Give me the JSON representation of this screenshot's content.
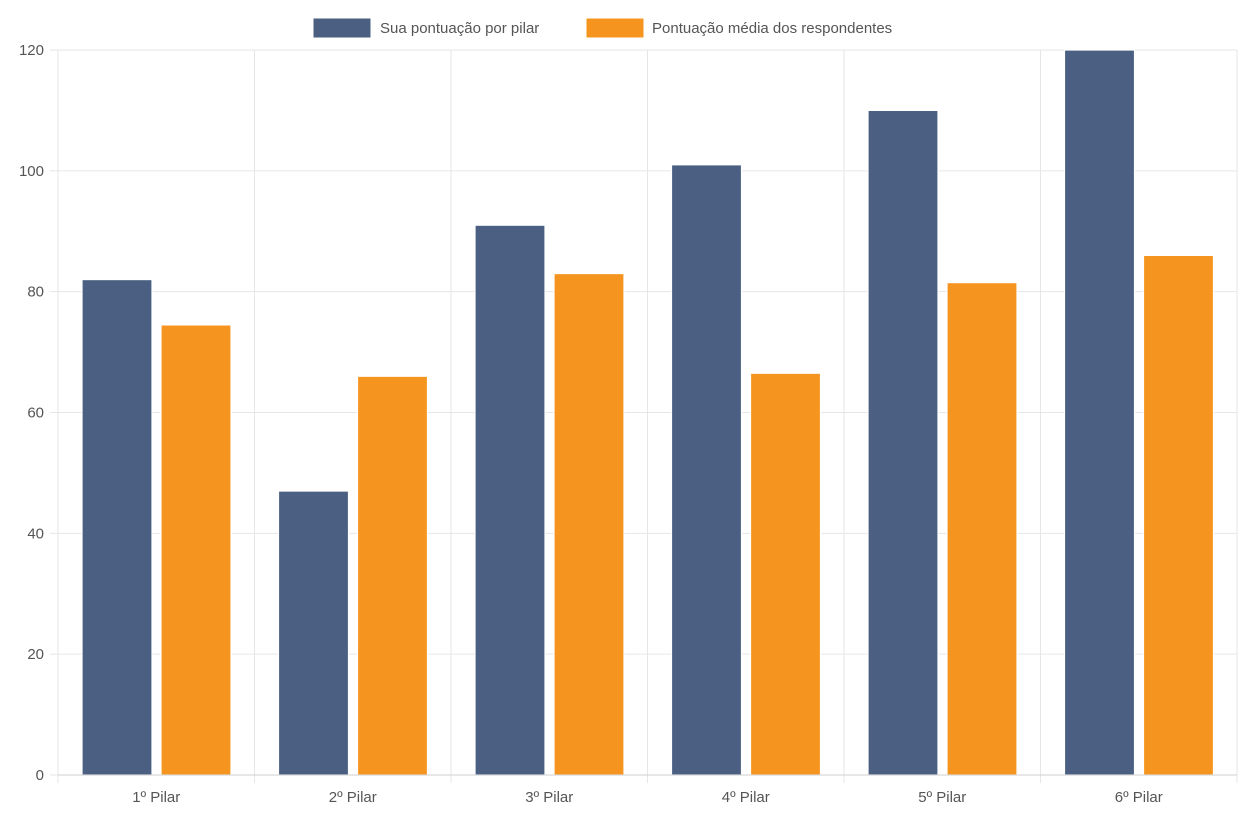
{
  "chart_data": {
    "type": "bar",
    "categories": [
      "1º Pilar",
      "2º Pilar",
      "3º Pilar",
      "4º Pilar",
      "5º Pilar",
      "6º Pilar"
    ],
    "series": [
      {
        "name": "Sua pontuação por pilar",
        "values": [
          82,
          47,
          91,
          101,
          110,
          120
        ],
        "color": "#4A5F82"
      },
      {
        "name": "Pontuação média dos respondentes",
        "values": [
          74.5,
          66,
          83,
          66.5,
          81.5,
          86
        ],
        "color": "#F5951F"
      }
    ],
    "ylim": [
      0,
      120
    ],
    "yticks": [
      0,
      20,
      40,
      60,
      80,
      100,
      120
    ],
    "grid": true,
    "legend_position": "top-center",
    "title": "",
    "xlabel": "",
    "ylabel": ""
  },
  "colors": {
    "grid": "#E6E6E6",
    "tick_text": "#555555"
  }
}
